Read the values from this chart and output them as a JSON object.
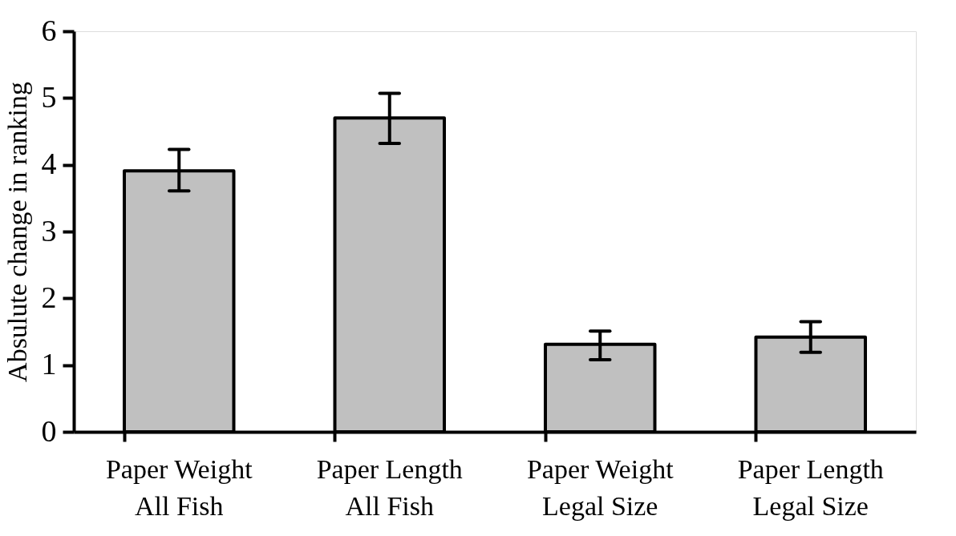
{
  "chart_data": {
    "type": "bar",
    "ylabel": "Absulute change in ranking",
    "categories": [
      "Paper Weight\nAll Fish",
      "Paper Length\nAll Fish",
      "Paper Weight\nLegal Size",
      "Paper Length\nLegal Size"
    ],
    "values": [
      3.91,
      4.7,
      1.31,
      1.42
    ],
    "errors": [
      [
        3.61,
        4.23
      ],
      [
        4.32,
        5.07
      ],
      [
        1.08,
        1.51
      ],
      [
        1.19,
        1.65
      ]
    ],
    "color": "#c0c0c0",
    "ylim": [
      0,
      6
    ],
    "yticks": [
      0,
      1,
      2,
      3,
      4,
      5,
      6
    ],
    "grid": false
  }
}
